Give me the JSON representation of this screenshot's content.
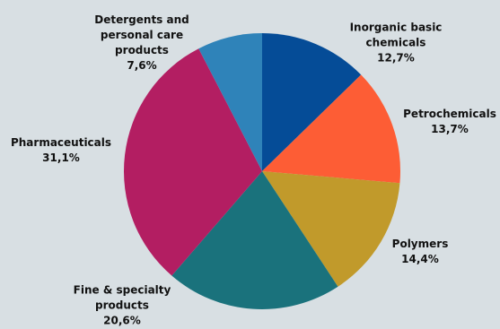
{
  "chart_data": {
    "type": "pie",
    "title": "",
    "legend": "none",
    "start_angle_deg": 0,
    "direction": "clockwise",
    "slices": [
      {
        "label": "Inorganic basic\nchemicals",
        "value": 12.7,
        "value_label": "12,7%",
        "color": "#054c97"
      },
      {
        "label": "Petrochemicals",
        "value": 13.7,
        "value_label": "13,7%",
        "color": "#fd5d35"
      },
      {
        "label": "Polymers",
        "value": 14.4,
        "value_label": "14,4%",
        "color": "#c19a2b"
      },
      {
        "label": "Fine & specialty\nproducts",
        "value": 20.6,
        "value_label": "20,6%",
        "color": "#1a727c"
      },
      {
        "label": "Pharmaceuticals",
        "value": 31.1,
        "value_label": "31,1%",
        "color": "#b31e62"
      },
      {
        "label": "Detergents and\npersonal care\nproducts",
        "value": 7.6,
        "value_label": "7,6%",
        "color": "#2f83b9"
      }
    ]
  }
}
